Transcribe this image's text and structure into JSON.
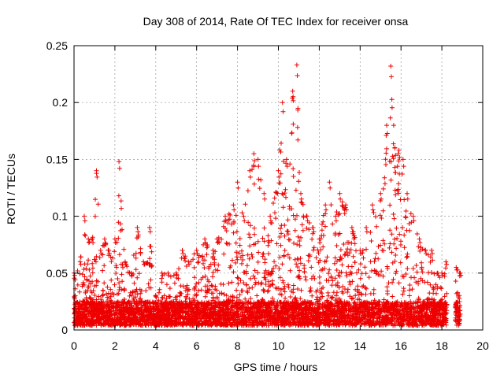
{
  "chart_data": {
    "type": "scatter",
    "title": "Day 308 of 2014, Rate Of TEC Index for receiver onsa",
    "xlabel": "GPS time / hours",
    "ylabel": "ROTI / TECUs",
    "xlim": [
      0,
      20
    ],
    "ylim": [
      0,
      0.25
    ],
    "x_ticks": [
      "0",
      "2",
      "4",
      "6",
      "8",
      "10",
      "12",
      "14",
      "16",
      "18",
      "20"
    ],
    "y_ticks": [
      "0",
      "0.05",
      "0.1",
      "0.15",
      "0.2",
      "0.25"
    ],
    "grid": true,
    "marker": "plus",
    "color": "#ee0000",
    "series": [
      {
        "name": "ROTI",
        "envelope_upper": [
          [
            0.0,
            0.05
          ],
          [
            0.3,
            0.06
          ],
          [
            0.5,
            0.1
          ],
          [
            0.7,
            0.08
          ],
          [
            0.9,
            0.08
          ],
          [
            1.1,
            0.14
          ],
          [
            1.3,
            0.07
          ],
          [
            1.5,
            0.08
          ],
          [
            1.7,
            0.07
          ],
          [
            2.0,
            0.08
          ],
          [
            2.2,
            0.148
          ],
          [
            2.5,
            0.06
          ],
          [
            2.8,
            0.05
          ],
          [
            3.1,
            0.09
          ],
          [
            3.4,
            0.06
          ],
          [
            3.7,
            0.09
          ],
          [
            4.0,
            0.03
          ],
          [
            4.3,
            0.05
          ],
          [
            4.6,
            0.05
          ],
          [
            5.0,
            0.05
          ],
          [
            5.3,
            0.07
          ],
          [
            5.6,
            0.06
          ],
          [
            6.0,
            0.07
          ],
          [
            6.4,
            0.08
          ],
          [
            6.8,
            0.07
          ],
          [
            7.0,
            0.08
          ],
          [
            7.4,
            0.1
          ],
          [
            7.8,
            0.11
          ],
          [
            8.0,
            0.13
          ],
          [
            8.3,
            0.1
          ],
          [
            8.6,
            0.14
          ],
          [
            8.8,
            0.155
          ],
          [
            9.0,
            0.15
          ],
          [
            9.3,
            0.12
          ],
          [
            9.6,
            0.1
          ],
          [
            10.0,
            0.14
          ],
          [
            10.2,
            0.2
          ],
          [
            10.4,
            0.15
          ],
          [
            10.7,
            0.21
          ],
          [
            10.9,
            0.233
          ],
          [
            11.1,
            0.12
          ],
          [
            11.4,
            0.1
          ],
          [
            11.7,
            0.09
          ],
          [
            12.0,
            0.08
          ],
          [
            12.3,
            0.11
          ],
          [
            12.5,
            0.13
          ],
          [
            12.8,
            0.1
          ],
          [
            13.0,
            0.12
          ],
          [
            13.3,
            0.11
          ],
          [
            13.6,
            0.09
          ],
          [
            14.0,
            0.07
          ],
          [
            14.3,
            0.09
          ],
          [
            14.6,
            0.11
          ],
          [
            15.0,
            0.12
          ],
          [
            15.3,
            0.18
          ],
          [
            15.5,
            0.232
          ],
          [
            15.7,
            0.16
          ],
          [
            15.9,
            0.158
          ],
          [
            16.1,
            0.15
          ],
          [
            16.3,
            0.12
          ],
          [
            16.6,
            0.1
          ],
          [
            16.9,
            0.08
          ],
          [
            17.2,
            0.07
          ],
          [
            17.5,
            0.07
          ],
          [
            17.8,
            0.05
          ],
          [
            18.0,
            0.05
          ],
          [
            18.2,
            0.06
          ],
          [
            18.5,
            0.0
          ],
          [
            18.7,
            0.055
          ],
          [
            18.9,
            0.05
          ]
        ],
        "baseline_range": [
          0.004,
          0.025
        ],
        "x_range": [
          0.0,
          18.9
        ],
        "gap": [
          18.25,
          18.65
        ],
        "n_points": 5200
      }
    ]
  }
}
